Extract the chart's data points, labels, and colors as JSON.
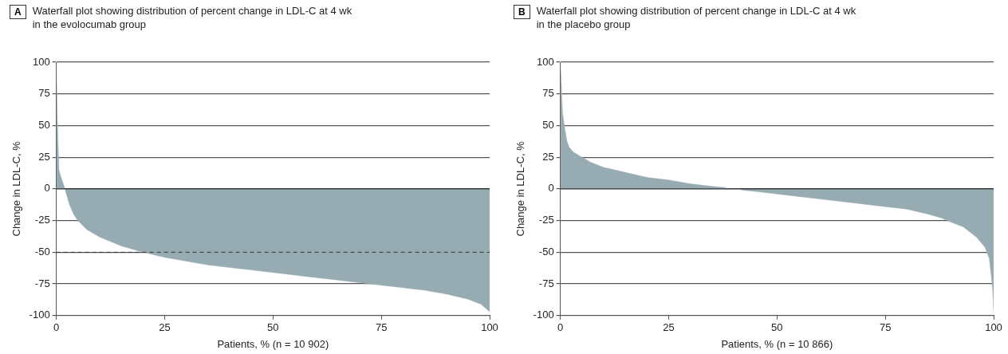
{
  "chart_data": [
    {
      "type": "area",
      "title": "Waterfall plot showing distribution of percent change in LDL-C at 4 wk\nin the evolocumab group",
      "annotations": [
        "A"
      ],
      "xlabel": "Patients, % (n = 10 902)",
      "ylabel": "Change in LDL-C, %",
      "x": [
        0,
        0.2,
        0.4,
        0.6,
        1,
        1.5,
        2,
        3,
        4,
        5,
        7,
        10,
        15,
        20,
        25,
        30,
        35,
        40,
        45,
        50,
        55,
        60,
        65,
        70,
        75,
        80,
        85,
        90,
        95,
        98,
        100
      ],
      "series": [
        {
          "color": "#97abb3",
          "values": [
            100,
            60,
            35,
            15,
            10,
            5,
            0,
            -12,
            -20,
            -25,
            -32,
            -38,
            -45,
            -50,
            -54,
            -57,
            -60,
            -62,
            -64,
            -66,
            -68,
            -70,
            -72,
            -74,
            -76,
            -78,
            -80,
            -83,
            -87,
            -91,
            -97
          ]
        }
      ],
      "xlim": [
        0,
        100
      ],
      "xticks": [
        0,
        25,
        50,
        75,
        100
      ],
      "ylim": [
        -100,
        100
      ],
      "yticks": [
        -100,
        -75,
        -50,
        -25,
        0,
        25,
        50,
        75,
        100
      ],
      "grid": "y",
      "ref_lines": [
        {
          "axis": "y",
          "value": 0,
          "label": null,
          "color": "#222222",
          "line_style": "solid"
        },
        {
          "axis": "y",
          "value": -50,
          "label": null,
          "color": "#333333",
          "line_style": "dashed"
        }
      ]
    },
    {
      "type": "area",
      "title": "Waterfall plot showing distribution of percent change in LDL-C at 4 wk\nin the placebo group",
      "annotations": [
        "B"
      ],
      "xlabel": "Patients, % (n = 10 866)",
      "ylabel": "Change in LDL-C, %",
      "x": [
        0,
        0.2,
        0.5,
        1,
        1.5,
        2,
        3,
        5,
        7,
        10,
        15,
        20,
        25,
        30,
        35,
        38,
        38.5,
        41.5,
        42,
        45,
        50,
        55,
        60,
        65,
        70,
        75,
        80,
        85,
        88,
        90,
        93,
        96,
        98,
        99,
        99.5,
        99.8,
        100
      ],
      "series": [
        {
          "color": "#97abb3",
          "values": [
            100,
            85,
            60,
            48,
            38,
            33,
            29,
            25,
            21,
            17,
            13,
            9,
            7,
            4,
            2,
            1,
            0,
            0,
            -1,
            -2,
            -4,
            -6,
            -8,
            -10,
            -12,
            -14,
            -16,
            -20,
            -23,
            -26,
            -30,
            -38,
            -46,
            -55,
            -70,
            -80,
            -97
          ]
        }
      ],
      "xlim": [
        0,
        100
      ],
      "xticks": [
        0,
        25,
        50,
        75,
        100
      ],
      "ylim": [
        -100,
        100
      ],
      "yticks": [
        -100,
        -75,
        -50,
        -25,
        0,
        25,
        50,
        75,
        100
      ],
      "grid": "y",
      "ref_lines": [
        {
          "axis": "y",
          "value": 0,
          "label": null,
          "color": "#222222",
          "line_style": "solid"
        }
      ]
    }
  ]
}
